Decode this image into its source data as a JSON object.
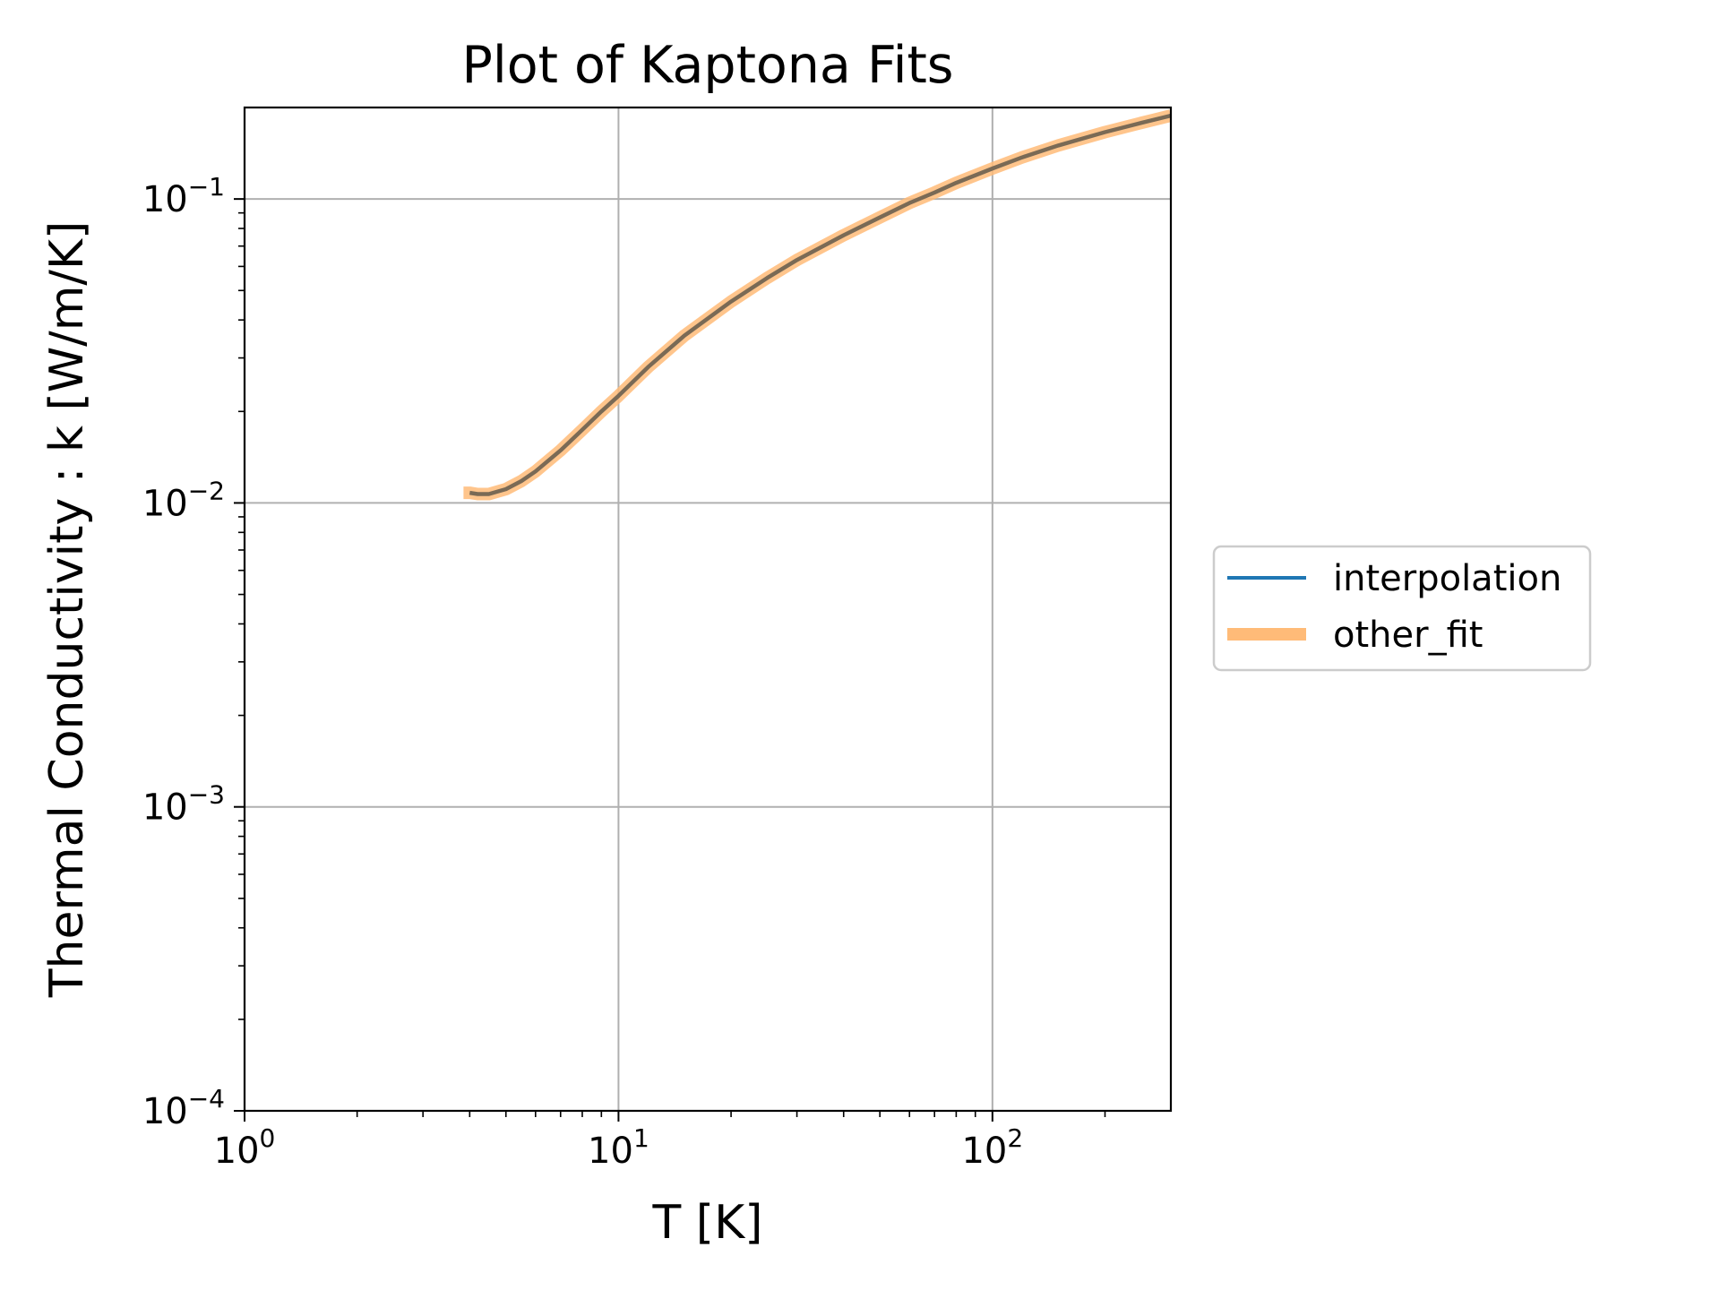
{
  "chart_data": {
    "type": "line",
    "title": "Plot of Kaptona Fits",
    "xlabel": "T [K]",
    "ylabel": "Thermal Conductivity : k [W/m/K]",
    "xscale": "log",
    "yscale": "log",
    "xlim": [
      1,
      300
    ],
    "ylim": [
      0.0001,
      0.2
    ],
    "grid": true,
    "legend_position": "outside-right",
    "x_ticks": [
      {
        "value": 1,
        "base": "10",
        "exp": "0"
      },
      {
        "value": 10,
        "base": "10",
        "exp": "1"
      },
      {
        "value": 100,
        "base": "10",
        "exp": "2"
      }
    ],
    "y_ticks": [
      {
        "value": 0.0001,
        "base": "10",
        "exp": "−4"
      },
      {
        "value": 0.001,
        "base": "10",
        "exp": "−3"
      },
      {
        "value": 0.01,
        "base": "10",
        "exp": "−2"
      },
      {
        "value": 0.1,
        "base": "10",
        "exp": "−1"
      }
    ],
    "series": [
      {
        "name": "interpolation",
        "color": "#1f77b4",
        "x": [
          4,
          4.2,
          4.5,
          5,
          5.5,
          6,
          7,
          8,
          9,
          10,
          12,
          15,
          20,
          25,
          30,
          40,
          50,
          60,
          70,
          80,
          100,
          120,
          150,
          200,
          250,
          300
        ],
        "y": [
          0.0108,
          0.0107,
          0.0107,
          0.0111,
          0.0118,
          0.0127,
          0.0149,
          0.0174,
          0.02,
          0.0225,
          0.028,
          0.0355,
          0.046,
          0.055,
          0.063,
          0.076,
          0.087,
          0.097,
          0.105,
          0.113,
          0.126,
          0.137,
          0.15,
          0.166,
          0.178,
          0.188
        ]
      },
      {
        "name": "other_fit",
        "color": "#ffbb78",
        "x": [
          3.85,
          4,
          4.2,
          4.5,
          5,
          5.5,
          6,
          7,
          8,
          9,
          10,
          12,
          15,
          20,
          25,
          30,
          40,
          50,
          60,
          70,
          80,
          100,
          120,
          150,
          200,
          250,
          300
        ],
        "y": [
          0.0108,
          0.0108,
          0.0107,
          0.0107,
          0.0111,
          0.0118,
          0.0127,
          0.0149,
          0.0174,
          0.02,
          0.0225,
          0.028,
          0.0355,
          0.046,
          0.055,
          0.063,
          0.076,
          0.087,
          0.097,
          0.105,
          0.113,
          0.126,
          0.137,
          0.15,
          0.166,
          0.178,
          0.188
        ]
      }
    ]
  }
}
